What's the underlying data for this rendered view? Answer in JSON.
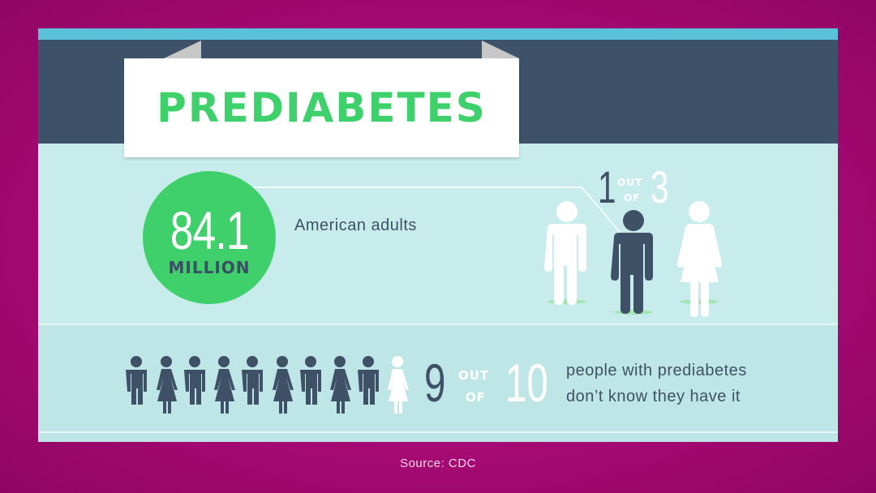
{
  "title": "PREDIABETES",
  "stat": {
    "number": "84.1",
    "unit": "MILLION",
    "caption": "American adults"
  },
  "ratio_adults": {
    "numerator": "1",
    "out_word": "OUT",
    "of_word": "OF",
    "denominator": "3"
  },
  "ratio_unaware": {
    "numerator": "9",
    "out_word": "OUT",
    "of_word": "OF",
    "denominator": "10",
    "caption_line1": "people with prediabetes",
    "caption_line2": "don’t know they have it"
  },
  "source": "Source: CDC",
  "colors": {
    "background": "#a50a73",
    "title_green": "#3ed06b",
    "dark_band": "#3d5268",
    "figure_dark": "#3e5166",
    "panel_light": "#c8ecec"
  }
}
